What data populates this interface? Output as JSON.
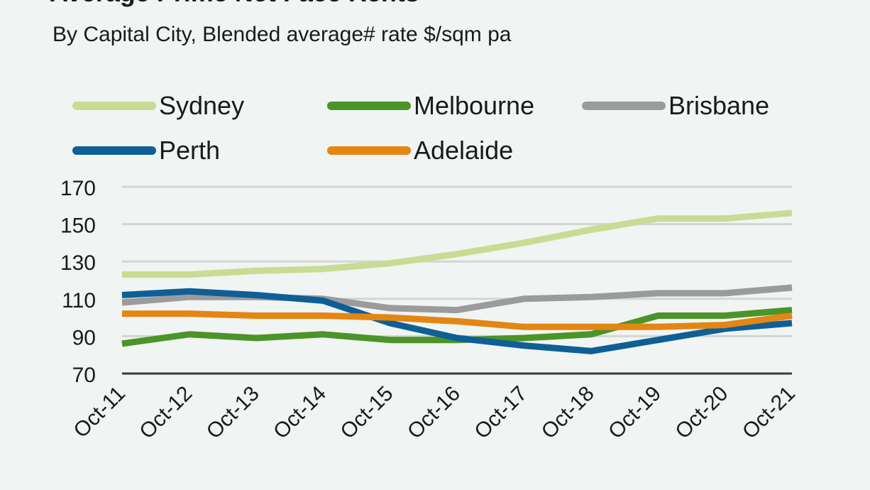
{
  "chart_data": {
    "type": "line",
    "title": "Average Prime Net Face Rents",
    "subtitle": "By Capital City, Blended average# rate $/sqm pa",
    "categories": [
      "Oct-11",
      "Oct-12",
      "Oct-13",
      "Oct-14",
      "Oct-15",
      "Oct-16",
      "Oct-17",
      "Oct-18",
      "Oct-19",
      "Oct-20",
      "Oct-21"
    ],
    "yticks": [
      "170",
      "150",
      "130",
      "110",
      "90",
      "70"
    ],
    "ylim": [
      70,
      170
    ],
    "grid": true,
    "legend_position": "top",
    "series": [
      {
        "name": "Sydney",
        "color": "#c8dc94",
        "values": [
          123,
          123,
          125,
          126,
          129,
          134,
          140,
          147,
          153,
          153,
          156
        ]
      },
      {
        "name": "Melbourne",
        "color": "#4a9428",
        "values": [
          86,
          91,
          89,
          91,
          88,
          88,
          89,
          91,
          101,
          101,
          104
        ]
      },
      {
        "name": "Brisbane",
        "color": "#9b9b9b",
        "values": [
          108,
          111,
          111,
          110,
          105,
          104,
          110,
          111,
          113,
          113,
          116
        ]
      },
      {
        "name": "Perth",
        "color": "#0f5f96",
        "values": [
          112,
          114,
          112,
          109,
          97,
          89,
          85,
          82,
          88,
          94,
          97
        ]
      },
      {
        "name": "Adelaide",
        "color": "#e38614",
        "values": [
          102,
          102,
          101,
          101,
          100,
          98,
          95,
          95,
          95,
          96,
          101
        ]
      }
    ]
  }
}
